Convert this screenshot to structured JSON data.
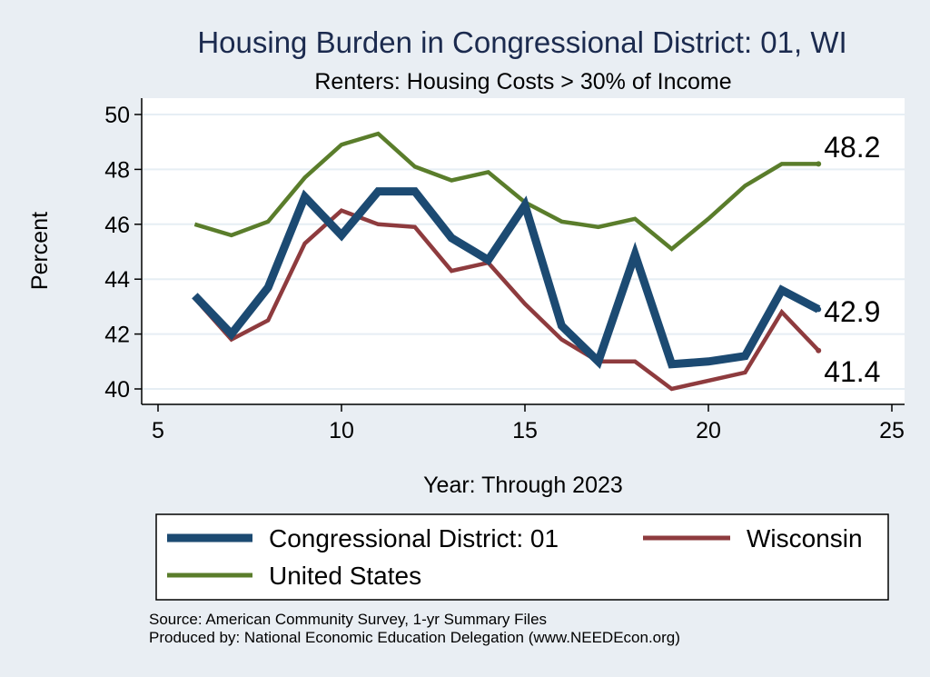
{
  "chart_data": {
    "type": "line",
    "title": "Housing Burden in Congressional District:  01, WI",
    "subtitle": "Renters: Housing Costs > 30% of Income",
    "xlabel": "Year: Through 2023",
    "ylabel": "Percent",
    "xlim": [
      5,
      25
    ],
    "ylim": [
      40,
      50
    ],
    "x_ticks": [
      "5",
      "10",
      "15",
      "20",
      "25"
    ],
    "y_ticks": [
      "40",
      "42",
      "44",
      "46",
      "48",
      "50"
    ],
    "grid": true,
    "legend_position": "bottom",
    "series": [
      {
        "name": "Congressional District:  01",
        "color": "#1c4a72",
        "x": [
          6,
          7,
          8,
          9,
          10,
          11,
          12,
          13,
          14,
          15,
          16,
          17,
          18,
          19,
          20,
          21,
          22,
          23
        ],
        "values": [
          43.4,
          42.0,
          43.7,
          47.0,
          45.6,
          47.2,
          47.2,
          45.5,
          44.7,
          46.7,
          42.3,
          41.0,
          44.9,
          40.9,
          41.0,
          41.2,
          43.6,
          42.9
        ],
        "end_label": "42.9"
      },
      {
        "name": "Wisconsin",
        "color": "#8e3b3e",
        "x": [
          6,
          7,
          8,
          9,
          10,
          11,
          12,
          13,
          14,
          15,
          16,
          17,
          18,
          19,
          20,
          21,
          22,
          23
        ],
        "values": [
          43.3,
          41.8,
          42.5,
          45.3,
          46.5,
          46.0,
          45.9,
          44.3,
          44.6,
          43.1,
          41.8,
          41.0,
          41.0,
          40.0,
          40.3,
          40.6,
          42.8,
          41.4
        ],
        "end_label": "41.4"
      },
      {
        "name": "United States",
        "color": "#5a7d2b",
        "x": [
          6,
          7,
          8,
          9,
          10,
          11,
          12,
          13,
          14,
          15,
          16,
          17,
          18,
          19,
          20,
          21,
          22,
          23
        ],
        "values": [
          46.0,
          45.6,
          46.1,
          47.7,
          48.9,
          49.3,
          48.1,
          47.6,
          47.9,
          46.8,
          46.1,
          45.9,
          46.2,
          45.1,
          46.2,
          47.4,
          48.2,
          48.2
        ],
        "end_label": "48.2"
      }
    ]
  },
  "source": {
    "line1": "Source: American Community Survey, 1-yr Summary Files",
    "line2": "Produced by: National Economic Education Delegation (www.NEEDEcon.org)"
  }
}
